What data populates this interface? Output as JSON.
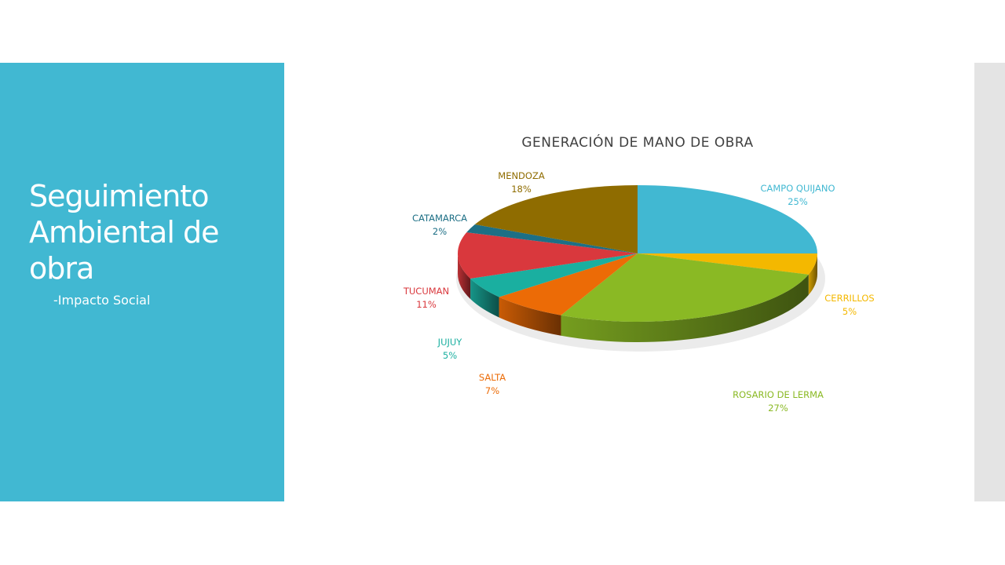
{
  "slide": {
    "title": "Seguimiento Ambiental de obra",
    "subtitle": "-Impacto Social"
  },
  "chart_data": {
    "type": "pie",
    "style": "3d",
    "title": "GENERACIÓN DE MANO DE OBRA",
    "slices": [
      {
        "name": "CAMPO QUIJANO",
        "value": 25,
        "label": "25%",
        "color": "#41b8d2"
      },
      {
        "name": "CERRILLOS",
        "value": 5,
        "label": "5%",
        "color": "#f4b800"
      },
      {
        "name": "ROSARIO DE LERMA",
        "value": 27,
        "label": "27%",
        "color": "#8ab924"
      },
      {
        "name": "SALTA",
        "value": 7,
        "label": "7%",
        "color": "#ec6b06"
      },
      {
        "name": "JUJUY",
        "value": 5,
        "label": "5%",
        "color": "#1aafa0"
      },
      {
        "name": "TUCUMAN",
        "value": 11,
        "label": "11%",
        "color": "#d9383d"
      },
      {
        "name": "CATAMARCA",
        "value": 2,
        "label": "2%",
        "color": "#1d6f85"
      },
      {
        "name": "MENDOZA",
        "value": 18,
        "label": "18%",
        "color": "#8f6c00"
      }
    ]
  }
}
